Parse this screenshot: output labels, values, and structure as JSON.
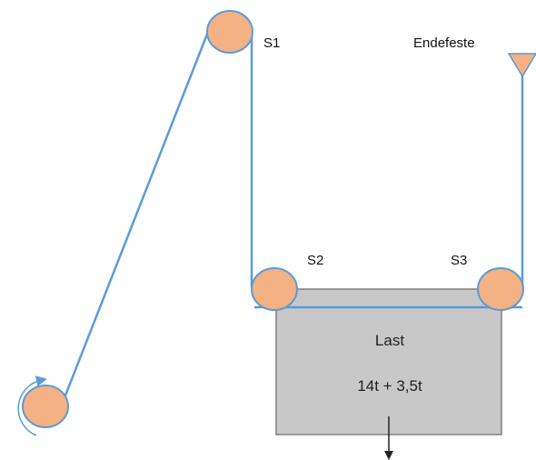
{
  "labels": {
    "s1": "S1",
    "s2": "S2",
    "s3": "S3",
    "end_anchor": "Endefeste",
    "load_title": "Last",
    "load_value": "14t + 3,5t"
  },
  "colors": {
    "rope": "#5b9bd5",
    "sheave_fill": "#f4b183",
    "sheave_stroke": "#5b9bd5",
    "box_fill": "#c8c8c8",
    "box_stroke": "#7f7f7f",
    "anchor_fill": "#f4b183",
    "arrow": "#222222"
  },
  "icons": {
    "rotation": "rotation-arrow-icon",
    "anchor": "triangle-anchor-icon",
    "force": "down-arrow-icon"
  }
}
